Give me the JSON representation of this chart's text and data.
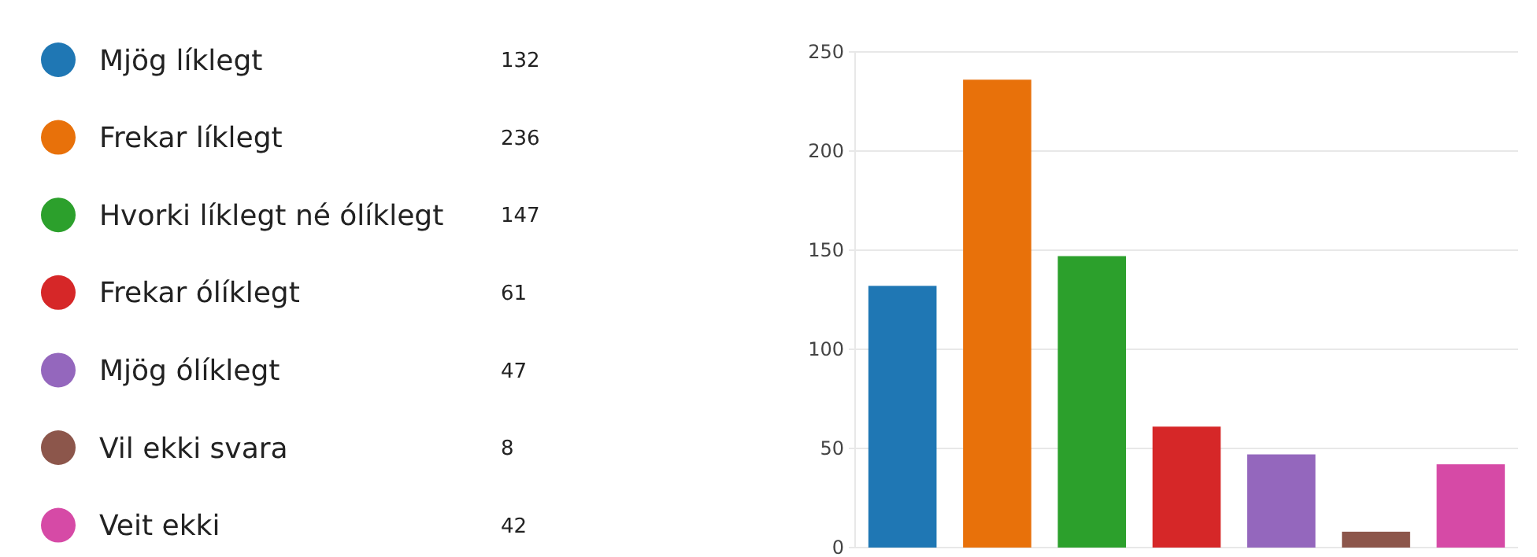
{
  "chart_data": {
    "type": "bar",
    "categories": [
      null,
      null,
      null,
      null,
      null,
      null,
      null
    ],
    "series": [
      {
        "name": "Mjög líklegt",
        "color": "#1f77b4",
        "values": [
          132,
          null,
          null,
          null,
          null,
          null,
          null
        ]
      },
      {
        "name": "Frekar líklegt",
        "color": "#e8710a",
        "values": [
          null,
          236,
          null,
          null,
          null,
          null,
          null
        ]
      },
      {
        "name": "Hvorki líklegt né ólíklegt",
        "color": "#2ca02c",
        "values": [
          null,
          null,
          147,
          null,
          null,
          null,
          null
        ]
      },
      {
        "name": "Frekar ólíklegt",
        "color": "#d62728",
        "values": [
          null,
          null,
          null,
          61,
          null,
          null,
          null
        ]
      },
      {
        "name": "Mjög ólíklegt",
        "color": "#9467bd",
        "values": [
          null,
          null,
          null,
          null,
          47,
          null,
          null
        ]
      },
      {
        "name": "Vil ekki svara",
        "color": "#8c564b",
        "values": [
          null,
          null,
          null,
          null,
          null,
          8,
          null
        ]
      },
      {
        "name": "Veit ekki",
        "color": "#d64aa6",
        "values": [
          null,
          null,
          null,
          null,
          null,
          null,
          42
        ]
      }
    ],
    "ylim": [
      0,
      250
    ],
    "yticks": [
      0,
      50,
      100,
      150,
      200,
      250
    ],
    "annotations": [
      "132",
      "236",
      "147",
      "61",
      "47",
      "8",
      "42"
    ],
    "grid": "y",
    "legend": "left",
    "tick_labels": "y"
  }
}
